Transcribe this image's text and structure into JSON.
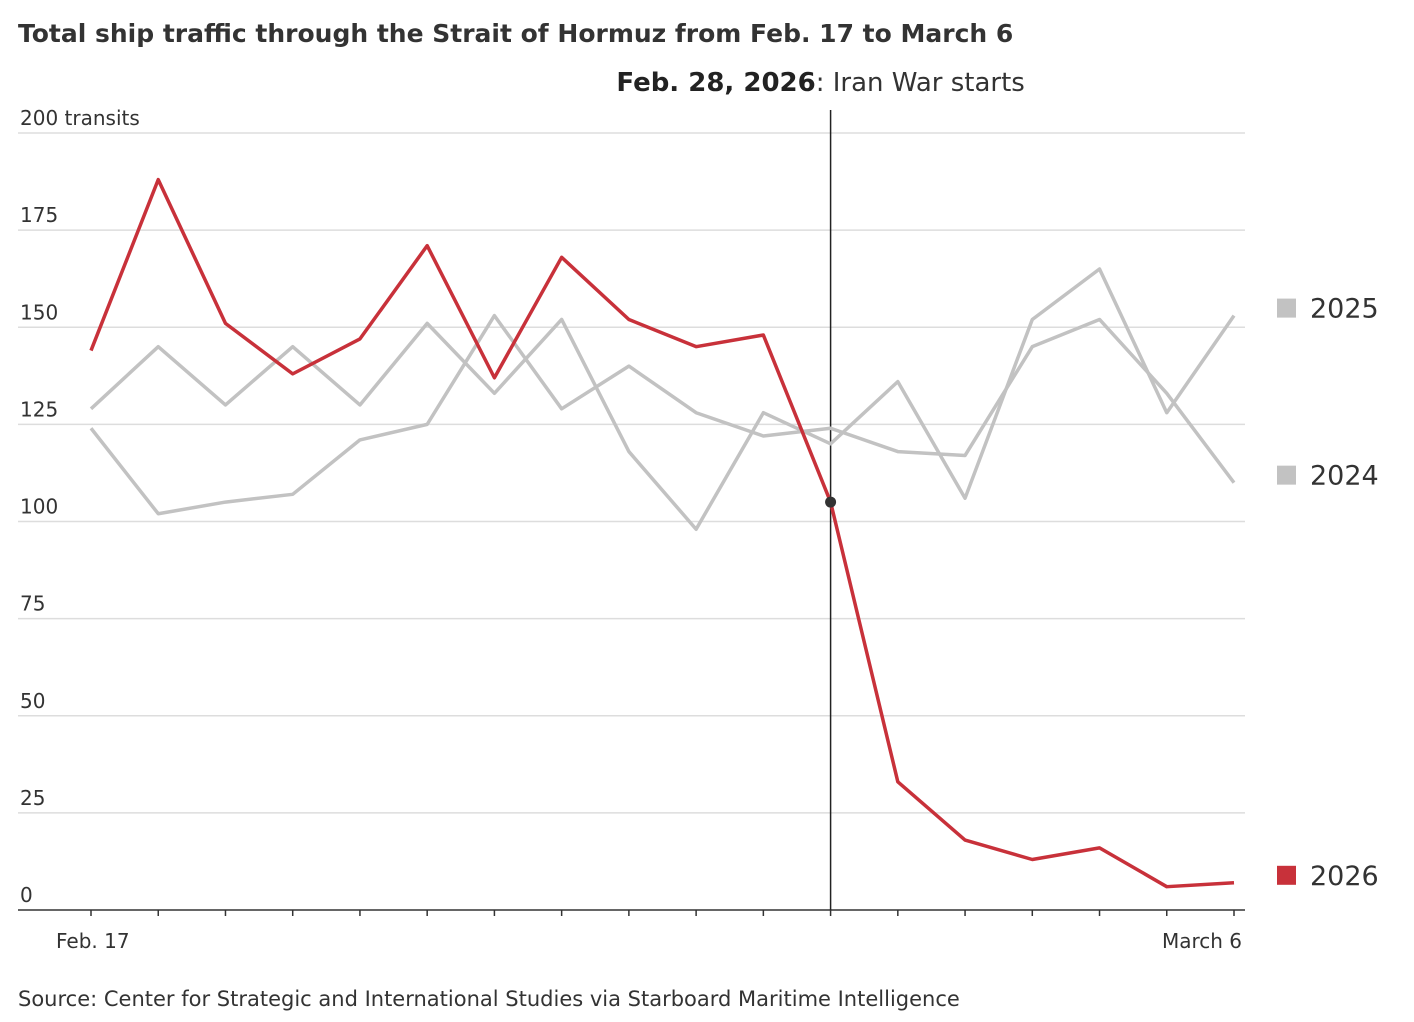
{
  "chart_data": {
    "type": "line",
    "title": "Total ship traffic through the Strait of Hormuz from Feb. 17 to March 6",
    "source": "Source: Center for Strategic and International Studies via Starboard Maritime Intelligence",
    "annotation": {
      "label": "Feb. 28, 2026",
      "text": ": Iran War starts"
    },
    "categories": [
      "Feb. 17",
      null,
      null,
      null,
      null,
      null,
      null,
      null,
      null,
      null,
      null,
      null,
      null,
      null,
      null,
      null,
      null,
      "March 6"
    ],
    "series": [
      {
        "name": "2025",
        "color": "#c2c2c2",
        "values": [
          129,
          145,
          130,
          145,
          130,
          151,
          133,
          152,
          118,
          98,
          128,
          120,
          136,
          106,
          152,
          165,
          128,
          153
        ]
      },
      {
        "name": "2024",
        "color": "#c2c2c2",
        "values": [
          124,
          102,
          105,
          107,
          121,
          125,
          153,
          129,
          140,
          128,
          122,
          124,
          118,
          117,
          145,
          152,
          133,
          110
        ]
      },
      {
        "name": "2026",
        "color": "#c8313a",
        "values": [
          144,
          188,
          151,
          138,
          147,
          171,
          137,
          168,
          152,
          145,
          148,
          105,
          33,
          18,
          13,
          16,
          6,
          7
        ]
      }
    ],
    "ylim": [
      0,
      200
    ],
    "yticks": [
      0,
      25,
      50,
      75,
      100,
      125,
      150,
      175,
      {
        "value": 200,
        "label": "200 transits"
      }
    ],
    "grid": true
  }
}
